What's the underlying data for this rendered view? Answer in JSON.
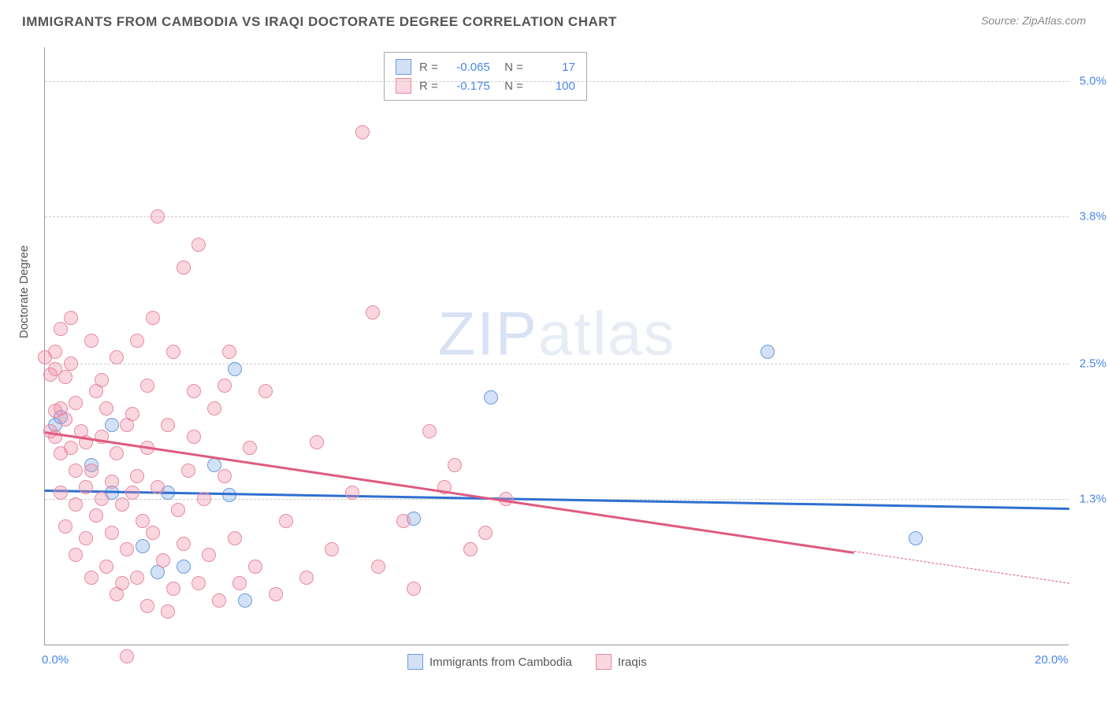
{
  "header": {
    "title": "IMMIGRANTS FROM CAMBODIA VS IRAQI DOCTORATE DEGREE CORRELATION CHART",
    "source": "Source: ZipAtlas.com"
  },
  "chart": {
    "type": "scatter",
    "y_axis_title": "Doctorate Degree",
    "xlim": [
      0.0,
      20.0
    ],
    "ylim": [
      0.0,
      5.3
    ],
    "x_ticks": [
      {
        "value": 0.0,
        "label": "0.0%"
      },
      {
        "value": 20.0,
        "label": "20.0%"
      }
    ],
    "y_gridlines": [
      {
        "value": 1.3,
        "label": "1.3%"
      },
      {
        "value": 2.5,
        "label": "2.5%"
      },
      {
        "value": 3.8,
        "label": "3.8%"
      },
      {
        "value": 5.0,
        "label": "5.0%"
      }
    ],
    "background_color": "#ffffff",
    "grid_color": "#cccccc",
    "axis_text_color": "#4a86e8",
    "point_radius": 9,
    "series": [
      {
        "name": "Immigrants from Cambodia",
        "fill": "rgba(130,170,230,0.35)",
        "stroke": "#6a9be0",
        "trend_color": "#2f6fd0",
        "R": "-0.065",
        "N": "17",
        "trend": {
          "x1": 0.0,
          "y1": 1.38,
          "x2": 20.0,
          "y2": 1.22,
          "dash_from_x": null
        },
        "points": [
          [
            0.2,
            1.95
          ],
          [
            0.3,
            2.02
          ],
          [
            0.9,
            1.6
          ],
          [
            1.3,
            1.95
          ],
          [
            1.3,
            1.35
          ],
          [
            1.9,
            0.88
          ],
          [
            2.2,
            0.65
          ],
          [
            2.4,
            1.35
          ],
          [
            2.7,
            0.7
          ],
          [
            3.3,
            1.6
          ],
          [
            3.6,
            1.33
          ],
          [
            3.7,
            2.45
          ],
          [
            3.9,
            0.4
          ],
          [
            7.2,
            1.12
          ],
          [
            8.7,
            2.2
          ],
          [
            14.1,
            2.6
          ],
          [
            17.0,
            0.95
          ]
        ]
      },
      {
        "name": "Iraqis",
        "fill": "rgba(240,140,165,0.35)",
        "stroke": "#e88aa2",
        "trend_color": "#e05a80",
        "R": "-0.175",
        "N": "100",
        "trend": {
          "x1": 0.0,
          "y1": 1.9,
          "x2": 20.0,
          "y2": 0.55,
          "dash_from_x": 15.8
        },
        "points": [
          [
            0.0,
            2.55
          ],
          [
            0.1,
            1.9
          ],
          [
            0.1,
            2.4
          ],
          [
            0.2,
            2.45
          ],
          [
            0.2,
            1.85
          ],
          [
            0.2,
            2.6
          ],
          [
            0.2,
            2.08
          ],
          [
            0.3,
            2.8
          ],
          [
            0.3,
            2.1
          ],
          [
            0.3,
            1.7
          ],
          [
            0.3,
            1.35
          ],
          [
            0.4,
            2.38
          ],
          [
            0.4,
            2.0
          ],
          [
            0.5,
            2.9
          ],
          [
            0.5,
            2.5
          ],
          [
            0.5,
            1.75
          ],
          [
            0.6,
            2.15
          ],
          [
            0.6,
            1.55
          ],
          [
            0.6,
            1.25
          ],
          [
            0.7,
            1.9
          ],
          [
            0.8,
            1.8
          ],
          [
            0.8,
            1.4
          ],
          [
            0.8,
            0.95
          ],
          [
            0.9,
            2.7
          ],
          [
            0.9,
            1.55
          ],
          [
            1.0,
            2.25
          ],
          [
            1.0,
            1.15
          ],
          [
            1.1,
            1.85
          ],
          [
            1.1,
            1.3
          ],
          [
            1.2,
            2.1
          ],
          [
            1.2,
            0.7
          ],
          [
            1.3,
            1.45
          ],
          [
            1.3,
            1.0
          ],
          [
            1.4,
            2.55
          ],
          [
            1.4,
            1.7
          ],
          [
            1.5,
            0.55
          ],
          [
            1.5,
            1.25
          ],
          [
            1.6,
            1.95
          ],
          [
            1.6,
            0.85
          ],
          [
            1.7,
            1.35
          ],
          [
            1.8,
            2.7
          ],
          [
            1.8,
            0.6
          ],
          [
            1.8,
            1.5
          ],
          [
            1.9,
            1.1
          ],
          [
            2.0,
            0.35
          ],
          [
            2.0,
            1.75
          ],
          [
            2.1,
            2.9
          ],
          [
            2.1,
            1.0
          ],
          [
            2.2,
            1.4
          ],
          [
            2.2,
            3.8
          ],
          [
            2.3,
            0.75
          ],
          [
            2.4,
            1.95
          ],
          [
            2.5,
            2.6
          ],
          [
            2.5,
            0.5
          ],
          [
            2.6,
            1.2
          ],
          [
            2.7,
            3.35
          ],
          [
            2.7,
            0.9
          ],
          [
            2.8,
            1.55
          ],
          [
            2.9,
            2.25
          ],
          [
            3.0,
            0.55
          ],
          [
            3.0,
            3.55
          ],
          [
            3.1,
            1.3
          ],
          [
            3.2,
            0.8
          ],
          [
            3.3,
            2.1
          ],
          [
            3.4,
            0.4
          ],
          [
            3.5,
            1.5
          ],
          [
            3.6,
            2.6
          ],
          [
            3.7,
            0.95
          ],
          [
            3.8,
            0.55
          ],
          [
            4.0,
            1.75
          ],
          [
            4.1,
            0.7
          ],
          [
            4.3,
            2.25
          ],
          [
            4.5,
            0.45
          ],
          [
            4.7,
            1.1
          ],
          [
            5.1,
            0.6
          ],
          [
            5.3,
            1.8
          ],
          [
            5.6,
            0.85
          ],
          [
            6.0,
            1.35
          ],
          [
            6.2,
            4.55
          ],
          [
            6.4,
            2.95
          ],
          [
            6.5,
            0.7
          ],
          [
            7.0,
            1.1
          ],
          [
            7.2,
            0.5
          ],
          [
            7.5,
            1.9
          ],
          [
            7.8,
            1.4
          ],
          [
            8.0,
            1.6
          ],
          [
            8.3,
            0.85
          ],
          [
            8.6,
            1.0
          ],
          [
            9.0,
            1.3
          ],
          [
            1.6,
            -0.1
          ],
          [
            0.4,
            1.05
          ],
          [
            0.6,
            0.8
          ],
          [
            0.9,
            0.6
          ],
          [
            1.1,
            2.35
          ],
          [
            1.4,
            0.45
          ],
          [
            1.7,
            2.05
          ],
          [
            2.0,
            2.3
          ],
          [
            2.4,
            0.3
          ],
          [
            2.9,
            1.85
          ],
          [
            3.5,
            2.3
          ]
        ]
      }
    ],
    "watermark": {
      "text_a": "ZIP",
      "text_b": "atlas"
    }
  },
  "legend": {
    "bottom_items": [
      "Immigrants from Cambodia",
      "Iraqis"
    ]
  }
}
